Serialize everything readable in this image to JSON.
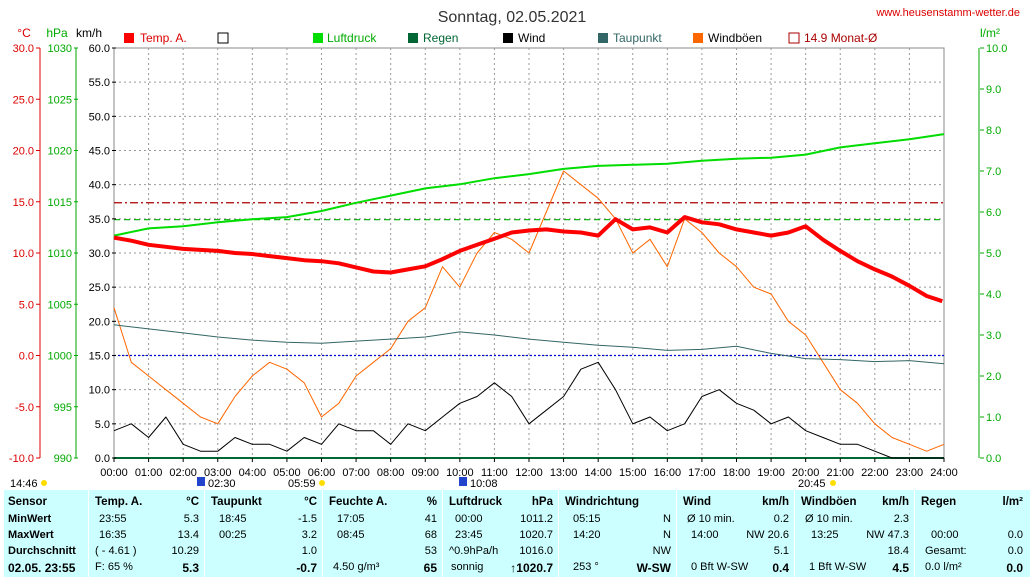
{
  "title": "Sonntag, 02.05.2021",
  "website": "www.heusenstamm-wetter.de",
  "axis_units": {
    "temp": "°C",
    "pressure": "hPa",
    "wind": "km/h",
    "rain": "l/m²"
  },
  "colors": {
    "temp": "#ff0000",
    "pressure": "#00dd00",
    "rain": "#006633",
    "wind": "#000000",
    "dewpoint": "#336666",
    "gusts": "#ff6600",
    "monthavg": "#aa0000",
    "pressure_ref": "#00aa00",
    "zero_line": "#0000cc",
    "axis_red": "#dd0000",
    "axis_green": "#00aa00"
  },
  "markers": {
    "left": "14:46",
    "t1": "02:30",
    "t2": "05:59",
    "t3": "10:08",
    "t4": "20:45"
  },
  "chart_data": {
    "type": "line",
    "title": "Sonntag, 02.05.2021",
    "x_range_hours": [
      0,
      24
    ],
    "x_ticks": [
      "00:00",
      "01:00",
      "02:00",
      "03:00",
      "04:00",
      "05:00",
      "06:00",
      "07:00",
      "08:00",
      "09:00",
      "10:00",
      "11:00",
      "12:00",
      "13:00",
      "14:00",
      "15:00",
      "16:00",
      "17:00",
      "18:00",
      "19:00",
      "20:00",
      "21:00",
      "22:00",
      "23:00",
      "24:00"
    ],
    "axes": {
      "temp": {
        "unit": "°C",
        "range": [
          -10,
          30
        ],
        "ticks": [
          "30.0",
          "25.0",
          "20.0",
          "15.0",
          "10.0",
          "5.0",
          "0.0",
          "-5.0",
          "-10.0"
        ]
      },
      "pressure": {
        "unit": "hPa",
        "range": [
          990,
          1030
        ],
        "ticks": [
          "1030",
          "1025",
          "1020",
          "1015",
          "1010",
          "1005",
          "1000",
          "995",
          "990"
        ]
      },
      "wind": {
        "unit": "km/h",
        "range": [
          0,
          60
        ],
        "ticks": [
          "60.0",
          "55.0",
          "50.0",
          "45.0",
          "40.0",
          "35.0",
          "30.0",
          "25.0",
          "20.0",
          "15.0",
          "10.0",
          "5.0",
          "0.0"
        ]
      },
      "rain": {
        "unit": "l/m²",
        "range": [
          0,
          10
        ],
        "ticks": [
          "10.0",
          "9.0",
          "8.0",
          "7.0",
          "6.0",
          "5.0",
          "4.0",
          "3.0",
          "2.0",
          "1.0",
          "0.0"
        ]
      }
    },
    "legend": [
      {
        "name": "Temp. A.",
        "color": "#ff0000",
        "style": "filled"
      },
      {
        "name": "",
        "color": "#000000",
        "style": "box"
      },
      {
        "name": "Luftdruck",
        "color": "#00dd00",
        "style": "filled"
      },
      {
        "name": "Regen",
        "color": "#006633",
        "style": "filled"
      },
      {
        "name": "Wind",
        "color": "#000000",
        "style": "filled"
      },
      {
        "name": "Taupunkt",
        "color": "#336666",
        "style": "filled"
      },
      {
        "name": "Windböen",
        "color": "#ff6600",
        "style": "filled"
      },
      {
        "name": "14.9 Monat-Ø",
        "color": "#aa0000",
        "style": "box"
      }
    ],
    "series": [
      {
        "name": "Temp. A.",
        "axis": "temp",
        "color": "#ff0000",
        "x": [
          0,
          0.5,
          1,
          1.5,
          2,
          2.5,
          3,
          3.5,
          4,
          4.5,
          5,
          5.5,
          6,
          6.5,
          7,
          7.5,
          8,
          8.5,
          9,
          9.5,
          10,
          10.5,
          11,
          11.5,
          12,
          12.5,
          13,
          13.5,
          14,
          14.5,
          15,
          15.5,
          16,
          16.5,
          17,
          17.5,
          18,
          18.5,
          19,
          19.5,
          20,
          20.5,
          21,
          21.5,
          22,
          22.5,
          23,
          23.5,
          23.95
        ],
        "y": [
          11.5,
          11.2,
          10.8,
          10.6,
          10.4,
          10.3,
          10.2,
          10.0,
          9.9,
          9.7,
          9.5,
          9.3,
          9.2,
          9.0,
          8.6,
          8.2,
          8.1,
          8.4,
          8.7,
          9.4,
          10.2,
          10.8,
          11.4,
          12.0,
          12.2,
          12.3,
          12.1,
          12.0,
          11.7,
          13.3,
          12.3,
          12.5,
          12.0,
          13.5,
          13.0,
          12.8,
          12.3,
          12.0,
          11.7,
          12.0,
          12.6,
          11.3,
          10.2,
          9.2,
          8.4,
          7.7,
          6.8,
          5.8,
          5.3
        ]
      },
      {
        "name": "Luftdruck",
        "axis": "pressure",
        "color": "#00dd00",
        "x": [
          0,
          1,
          2,
          3,
          4,
          5,
          6,
          7,
          8,
          9,
          10,
          11,
          12,
          13,
          14,
          15,
          16,
          17,
          18,
          19,
          20,
          21,
          22,
          23,
          24
        ],
        "y": [
          1011.7,
          1012.4,
          1012.6,
          1013.0,
          1013.3,
          1013.5,
          1014.1,
          1014.9,
          1015.6,
          1016.3,
          1016.7,
          1017.3,
          1017.7,
          1018.2,
          1018.5,
          1018.6,
          1018.7,
          1019.0,
          1019.2,
          1019.3,
          1019.6,
          1020.3,
          1020.7,
          1021.1,
          1021.6
        ]
      },
      {
        "name": "Taupunkt",
        "axis": "temp",
        "color": "#336666",
        "x": [
          0,
          1,
          2,
          3,
          4,
          5,
          6,
          7,
          8,
          9,
          10,
          11,
          12,
          13,
          14,
          15,
          16,
          17,
          18,
          19,
          20,
          21,
          22,
          23,
          24
        ],
        "y": [
          3.0,
          2.6,
          2.2,
          1.8,
          1.5,
          1.3,
          1.2,
          1.4,
          1.6,
          1.8,
          2.3,
          2.0,
          1.6,
          1.3,
          1.0,
          0.8,
          0.5,
          0.6,
          0.9,
          0.2,
          -0.3,
          -0.4,
          -0.6,
          -0.5,
          -0.8
        ]
      },
      {
        "name": "Wind",
        "axis": "wind",
        "color": "#000000",
        "x": [
          0,
          0.5,
          1,
          1.5,
          2,
          2.5,
          3,
          3.5,
          4,
          4.5,
          5,
          5.5,
          6,
          6.5,
          7,
          7.5,
          8,
          8.5,
          9,
          9.5,
          10,
          10.5,
          11,
          11.5,
          12,
          12.5,
          13,
          13.5,
          14,
          14.5,
          15,
          15.5,
          16,
          16.5,
          17,
          17.5,
          18,
          18.5,
          19,
          19.5,
          20,
          20.5,
          21,
          21.5,
          22,
          22.5,
          23,
          23.5,
          24
        ],
        "y": [
          4,
          5,
          3,
          6,
          2,
          1,
          1,
          3,
          2,
          2,
          1,
          3,
          2,
          5,
          4,
          4,
          2,
          5,
          4,
          6,
          8,
          9,
          11,
          9,
          5,
          7,
          9,
          13,
          14,
          10,
          5,
          6,
          4,
          5,
          9,
          10,
          8,
          7,
          5,
          6,
          4,
          3,
          2,
          2,
          1,
          0,
          0,
          0,
          0
        ]
      },
      {
        "name": "Windböen",
        "axis": "wind",
        "color": "#ff6600",
        "x": [
          0,
          0.5,
          1,
          1.5,
          2,
          2.5,
          3,
          3.5,
          4,
          4.5,
          5,
          5.5,
          6,
          6.5,
          7,
          7.5,
          8,
          8.5,
          9,
          9.5,
          10,
          10.5,
          11,
          11.5,
          12,
          12.5,
          13,
          13.5,
          14,
          14.5,
          15,
          15.5,
          16,
          16.5,
          17,
          17.5,
          18,
          18.5,
          19,
          19.5,
          20,
          20.5,
          21,
          21.5,
          22,
          22.5,
          23,
          23.5,
          24
        ],
        "y": [
          22,
          14,
          12,
          10,
          8,
          6,
          5,
          9,
          12,
          14,
          13,
          11,
          6,
          8,
          12,
          14,
          16,
          20,
          22,
          28,
          25,
          30,
          33,
          32,
          30,
          36,
          42,
          40,
          38,
          35,
          30,
          32,
          28,
          35,
          33,
          30,
          28,
          25,
          24,
          20,
          18,
          14,
          10,
          8,
          5,
          3,
          2,
          1,
          2
        ]
      },
      {
        "name": "Regen",
        "axis": "rain",
        "color": "#006633",
        "x": [
          0,
          24
        ],
        "y": [
          0.0,
          0.0
        ]
      }
    ],
    "reference_lines": [
      {
        "name": "14.9 Monat-Ø",
        "axis": "temp",
        "value": 14.9,
        "style": "dash-dot",
        "color": "#aa0000"
      },
      {
        "name": "pressure-ref",
        "axis": "pressure",
        "value": 1013.25,
        "style": "dashed",
        "color": "#00aa00"
      },
      {
        "name": "zero",
        "axis": "temp",
        "value": 0,
        "style": "dotted",
        "color": "#0000cc"
      }
    ],
    "grid": true
  },
  "table": {
    "row_labels": {
      "title": "Sensor",
      "min": "MinWert",
      "max": "MaxWert",
      "avg": "Durchschnitt",
      "date": "02.05. 23:55"
    },
    "temp": {
      "title": "Temp. A.",
      "unit": "°C",
      "min_time": "23:55",
      "min": "5.3",
      "max_time": "16:35",
      "max": "13.4",
      "avg_note": "( - 4.61 )",
      "avg": "10.29",
      "cur_note": "F: 65 %",
      "cur": "5.3"
    },
    "dew": {
      "title": "Taupunkt",
      "unit": "°C",
      "min_time": "18:45",
      "min": "-1.5",
      "max_time": "00:25",
      "max": "3.2",
      "avg": "1.0",
      "cur": "-0.7"
    },
    "hum": {
      "title": "Feuchte A.",
      "unit": "%",
      "min_time": "17:05",
      "min": "41",
      "max_time": "08:45",
      "max": "68",
      "avg": "53",
      "cur_note": "4.50 g/m³",
      "cur": "65"
    },
    "press": {
      "title": "Luftdruck",
      "unit": "hPa",
      "min_time": "00:00",
      "min": "1011.2",
      "max_time": "23:45",
      "max": "1020.7",
      "avg_note": "^0.9hPa/h",
      "avg": "1016.0",
      "cur_note": "sonnig",
      "cur": "↑1020.7"
    },
    "dir": {
      "title": "Windrichtung",
      "min_time": "05:15",
      "min": "N",
      "max_time": "14:20",
      "max": "N",
      "avg": "NW",
      "cur_note": "253 °",
      "cur": "W-SW"
    },
    "wind": {
      "title": "Wind",
      "unit": "km/h",
      "min_time": "Ø 10 min.",
      "min": "0.2",
      "max_time": "14:00",
      "max": "NW 20.6",
      "avg": "5.1",
      "cur_note": "0 Bft W-SW",
      "cur": "0.4"
    },
    "gust": {
      "title": "Windböen",
      "unit": "km/h",
      "min_time": "Ø 10 min.",
      "min": "2.3",
      "max_time": "13:25",
      "max": "NW 47.3",
      "avg": "18.4",
      "cur_note": "1 Bft W-SW",
      "cur": "4.5"
    },
    "rain": {
      "title": "Regen",
      "unit": "l/m²",
      "max_time": "00:00",
      "max": "0.0",
      "avg_label": "Gesamt:",
      "avg": "0.0",
      "cur_note": "0.0 l/m²",
      "cur": "0.0"
    }
  }
}
